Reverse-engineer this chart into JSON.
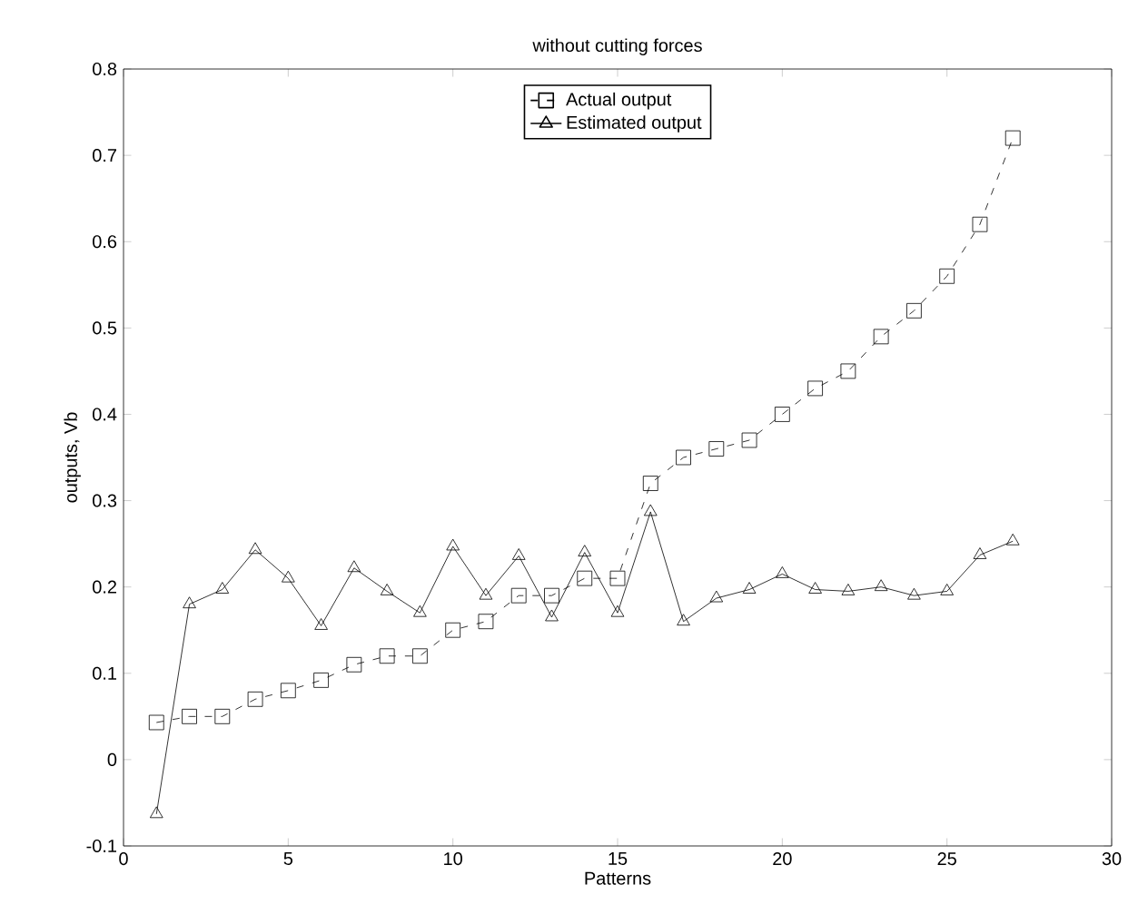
{
  "chart_data": {
    "type": "line",
    "title": "without cutting forces",
    "xlabel": "Patterns",
    "ylabel": "outputs, Vb",
    "x": [
      1,
      2,
      3,
      4,
      5,
      6,
      7,
      8,
      9,
      10,
      11,
      12,
      13,
      14,
      15,
      16,
      17,
      18,
      19,
      20,
      21,
      22,
      23,
      24,
      25,
      26,
      27
    ],
    "series": [
      {
        "name": "Actual output",
        "color": "#000000",
        "marker": "square",
        "line_style": "dashed",
        "values": [
          0.043,
          0.05,
          0.05,
          0.07,
          0.08,
          0.092,
          0.11,
          0.12,
          0.12,
          0.15,
          0.16,
          0.19,
          0.19,
          0.21,
          0.21,
          0.32,
          0.35,
          0.36,
          0.37,
          0.4,
          0.43,
          0.45,
          0.49,
          0.52,
          0.56,
          0.62,
          0.72
        ]
      },
      {
        "name": "Estimated output",
        "color": "#000000",
        "marker": "triangle",
        "line_style": "solid",
        "values": [
          -0.063,
          0.18,
          0.197,
          0.243,
          0.21,
          0.155,
          0.222,
          0.195,
          0.17,
          0.247,
          0.19,
          0.236,
          0.165,
          0.24,
          0.17,
          0.287,
          0.16,
          0.187,
          0.197,
          0.215,
          0.197,
          0.195,
          0.2,
          0.19,
          0.195,
          0.237,
          0.253
        ]
      }
    ],
    "xlim": [
      0,
      30
    ],
    "ylim": [
      -0.1,
      0.8
    ],
    "xticks": [
      0,
      5,
      10,
      15,
      20,
      25,
      30
    ],
    "yticks": [
      -0.1,
      0,
      0.1,
      0.2,
      0.3,
      0.4,
      0.5,
      0.6,
      0.7,
      0.8
    ],
    "grid": false,
    "legend": "top"
  }
}
